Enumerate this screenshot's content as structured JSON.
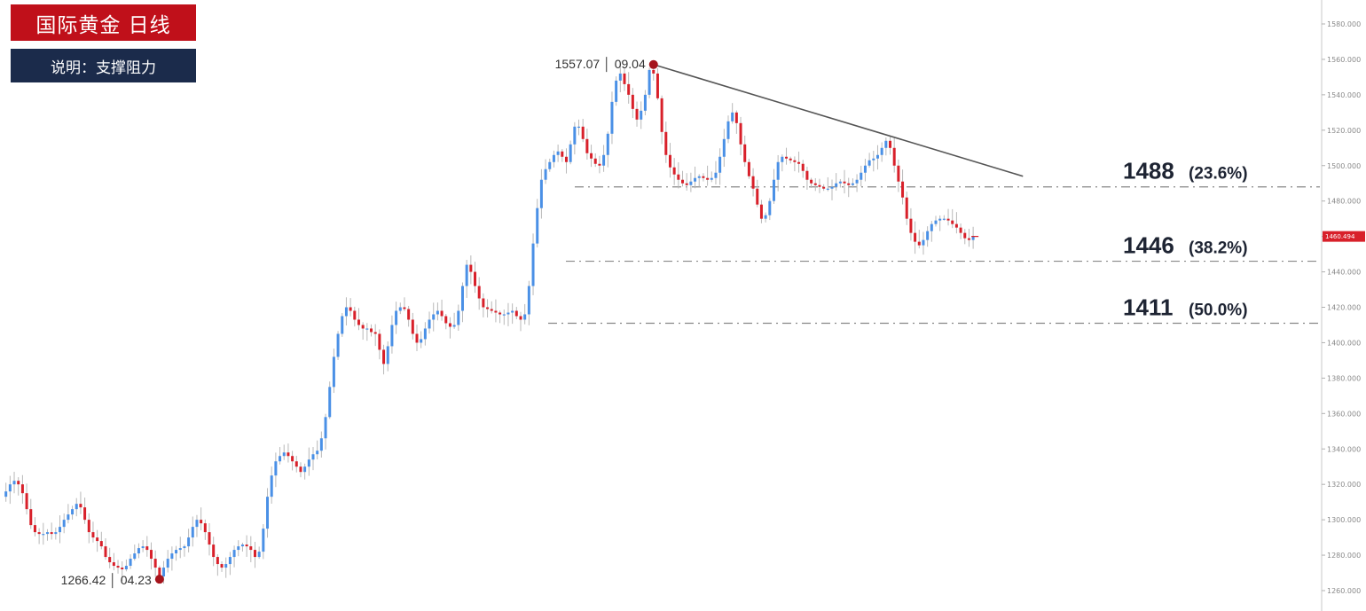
{
  "header": {
    "title": "国际黄金  日线",
    "subtitle": "说明：支撑阻力"
  },
  "colors": {
    "title_bg": "#c0101a",
    "subtitle_bg": "#1b2b4b",
    "bull": "#4a90e6",
    "bear": "#d8202a",
    "wick": "#b8b8b8",
    "marker": "#a5141c",
    "trendline": "#555555",
    "level_line": "#888888",
    "price_tag_bg": "#d8202a"
  },
  "chart_data": {
    "type": "candlestick",
    "title": "国际黄金  日线",
    "subtitle": "说明：支撑阻力",
    "ylim": [
      1254,
      1590
    ],
    "y_axis_position": "right",
    "y_ticks": [
      "1580.000",
      "1560.000",
      "1540.000",
      "1520.000",
      "1500.000",
      "1480.000",
      "1460.000",
      "1440.000",
      "1420.000",
      "1400.000",
      "1380.000",
      "1360.000",
      "1340.000",
      "1320.000",
      "1300.000",
      "1280.000",
      "1260.000"
    ],
    "y_tick_values": [
      1580,
      1560,
      1540,
      1520,
      1500,
      1480,
      1460,
      1440,
      1420,
      1400,
      1380,
      1360,
      1340,
      1320,
      1300,
      1280,
      1260
    ],
    "current_price": {
      "value": 1460.0,
      "label": "1460.494"
    },
    "levels": [
      {
        "value": 1488,
        "label": "1488",
        "pct": "(23.6%)"
      },
      {
        "value": 1446,
        "label": "1446",
        "pct": "(38.2%)"
      },
      {
        "value": 1411,
        "label": "1411",
        "pct": "(50.0%)"
      }
    ],
    "annotations": [
      {
        "name": "high",
        "price": 1557.07,
        "text": "1557.07 │ 09.04",
        "bar_index": 157
      },
      {
        "name": "low",
        "price": 1266.42,
        "text": "1266.42 │ 04.23",
        "bar_index": 38
      }
    ],
    "trendline": [
      {
        "bar_index": 157,
        "price": 1557.1
      },
      {
        "bar_index": 246,
        "price": 1494.0
      }
    ],
    "closes": [
      1313,
      1316,
      1320,
      1322,
      1320,
      1315,
      1306,
      1297,
      1293,
      1292,
      1292,
      1293,
      1292,
      1293,
      1296,
      1300,
      1303,
      1306,
      1309,
      1307,
      1300,
      1293,
      1290,
      1288,
      1285,
      1279,
      1276,
      1274,
      1273,
      1272,
      1274,
      1278,
      1281,
      1284,
      1285,
      1283,
      1278,
      1273,
      1268,
      1273,
      1278,
      1281,
      1283,
      1284,
      1285,
      1290,
      1296,
      1300,
      1298,
      1293,
      1286,
      1279,
      1275,
      1273,
      1275,
      1279,
      1283,
      1285,
      1286,
      1285,
      1283,
      1279,
      1282,
      1295,
      1313,
      1325,
      1333,
      1336,
      1338,
      1336,
      1333,
      1330,
      1327,
      1330,
      1334,
      1337,
      1339,
      1346,
      1358,
      1375,
      1392,
      1405,
      1415,
      1420,
      1418,
      1413,
      1410,
      1408,
      1408,
      1406,
      1405,
      1396,
      1388,
      1398,
      1410,
      1418,
      1420,
      1419,
      1413,
      1405,
      1400,
      1402,
      1408,
      1413,
      1416,
      1418,
      1415,
      1411,
      1409,
      1410,
      1418,
      1432,
      1444,
      1440,
      1432,
      1425,
      1420,
      1419,
      1418,
      1417,
      1416,
      1416,
      1417,
      1418,
      1415,
      1413,
      1416,
      1432,
      1456,
      1476,
      1492,
      1498,
      1502,
      1506,
      1508,
      1505,
      1502,
      1512,
      1522,
      1522,
      1515,
      1507,
      1504,
      1501,
      1500,
      1506,
      1518,
      1536,
      1548,
      1552,
      1546,
      1540,
      1532,
      1526,
      1531,
      1540,
      1554,
      1552,
      1538,
      1519,
      1506,
      1499,
      1495,
      1492,
      1490,
      1489,
      1491,
      1493,
      1494,
      1493,
      1492,
      1493,
      1496,
      1505,
      1515,
      1525,
      1530,
      1524,
      1512,
      1502,
      1494,
      1487,
      1478,
      1470,
      1472,
      1480,
      1492,
      1502,
      1505,
      1504,
      1503,
      1502,
      1501,
      1497,
      1492,
      1490,
      1489,
      1488,
      1487,
      1487,
      1488,
      1490,
      1491,
      1490,
      1489,
      1490,
      1492,
      1496,
      1500,
      1503,
      1504,
      1506,
      1510,
      1514,
      1510,
      1500,
      1491,
      1482,
      1470,
      1462,
      1457,
      1455,
      1458,
      1463,
      1467,
      1469,
      1470,
      1470,
      1469,
      1467,
      1465,
      1462,
      1459,
      1458,
      1460
    ]
  }
}
